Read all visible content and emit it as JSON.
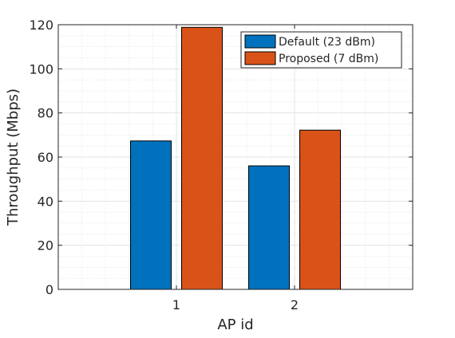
{
  "chart_data": {
    "type": "bar",
    "title": "",
    "xlabel": "AP id",
    "ylabel": "Throughput (Mbps)",
    "categories": [
      "1",
      "2"
    ],
    "series": [
      {
        "name": "Default (23 dBm)",
        "values": [
          67.3,
          56.0
        ],
        "color": "#0072BD"
      },
      {
        "name": "Proposed (7 dBm)",
        "values": [
          118.8,
          72.2
        ],
        "color": "#D95319"
      }
    ],
    "ylim": [
      0,
      120
    ],
    "yticks": [
      "0",
      "20",
      "40",
      "60",
      "80",
      "100",
      "120"
    ],
    "grid": true,
    "minor_grid": true,
    "legend_position": "top-right"
  }
}
